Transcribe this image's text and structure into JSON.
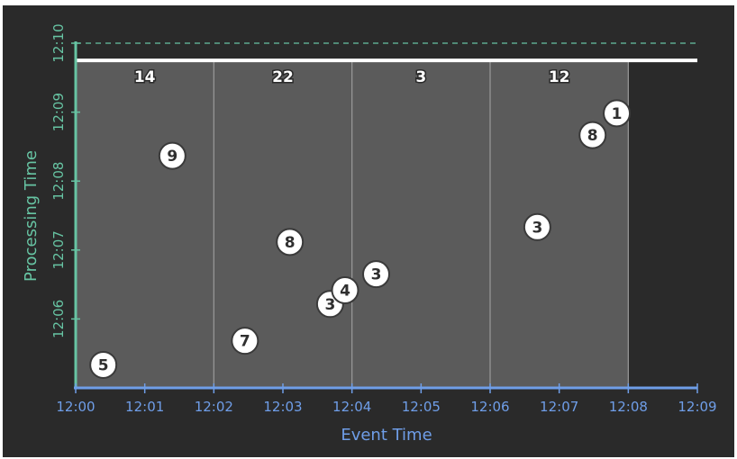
{
  "chart_data": {
    "type": "scatter",
    "xlabel": "Event Time",
    "ylabel": "Processing Time",
    "x_ticks": [
      "12:00",
      "12:01",
      "12:02",
      "12:03",
      "12:04",
      "12:05",
      "12:06",
      "12:07",
      "12:08",
      "12:09"
    ],
    "y_ticks": [
      "12:06",
      "12:07",
      "12:08",
      "12:09",
      "12:10"
    ],
    "xlim": [
      "12:00",
      "12:09"
    ],
    "ylim": [
      "12:05",
      "12:10"
    ],
    "windows": [
      {
        "start": "12:00",
        "end": "12:02",
        "label": "14"
      },
      {
        "start": "12:02",
        "end": "12:04",
        "label": "22"
      },
      {
        "start": "12:04",
        "end": "12:06",
        "label": "3"
      },
      {
        "start": "12:06",
        "end": "12:08",
        "label": "12"
      }
    ],
    "processing_line": "12:09:45",
    "points": [
      {
        "event_time": "12:00:24",
        "processing_time": "12:05:20",
        "label": "5"
      },
      {
        "event_time": "12:01:24",
        "processing_time": "12:08:22",
        "label": "9"
      },
      {
        "event_time": "12:02:27",
        "processing_time": "12:05:41",
        "label": "7"
      },
      {
        "event_time": "12:03:06",
        "processing_time": "12:07:07",
        "label": "8"
      },
      {
        "event_time": "12:03:41",
        "processing_time": "12:06:13",
        "label": "3"
      },
      {
        "event_time": "12:03:54",
        "processing_time": "12:06:25",
        "label": "4"
      },
      {
        "event_time": "12:04:21",
        "processing_time": "12:06:39",
        "label": "3"
      },
      {
        "event_time": "12:06:41",
        "processing_time": "12:07:20",
        "label": "3"
      },
      {
        "event_time": "12:07:29",
        "processing_time": "12:08:40",
        "label": "8"
      },
      {
        "event_time": "12:07:50",
        "processing_time": "12:08:59",
        "label": "1"
      }
    ],
    "colors": {
      "background": "#2a2a2a",
      "window_fill": "#5b5b5b",
      "x_axis": "#6f9ee8",
      "y_axis": "#67c4a3",
      "processing_line": "#ffffff",
      "point_fill": "#ffffff"
    }
  }
}
